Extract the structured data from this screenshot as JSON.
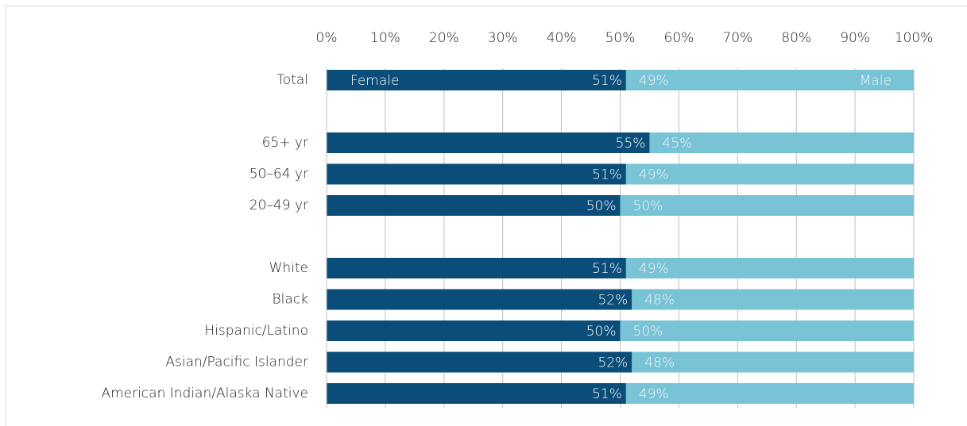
{
  "chart_data": {
    "type": "stacked-bar-horizontal",
    "categories": [
      "Total",
      null,
      "65+ yr",
      "50–64 yr",
      "20–49 yr",
      null,
      "White",
      "Black",
      "Hispanic/Latino",
      "Asian/Pacific Islander",
      "American Indian/Alaska Native"
    ],
    "series": [
      {
        "name": "Female",
        "color": "#0b4d79",
        "values": [
          51,
          null,
          55,
          51,
          50,
          null,
          51,
          52,
          50,
          52,
          51
        ],
        "value_labels": [
          "51%",
          null,
          "55%",
          "51%",
          "50%",
          null,
          "51%",
          "52%",
          "50%",
          "52%",
          "51%"
        ]
      },
      {
        "name": "Male",
        "color": "#78c3d5",
        "values": [
          49,
          null,
          45,
          49,
          50,
          null,
          49,
          48,
          50,
          48,
          49
        ],
        "value_labels": [
          "49%",
          null,
          "45%",
          "49%",
          "50%",
          null,
          "49%",
          "48%",
          "50%",
          "48%",
          "49%"
        ]
      }
    ],
    "xlim": [
      0,
      100
    ],
    "xticks": [
      {
        "value": 0,
        "label": "0%"
      },
      {
        "value": 10,
        "label": "10%"
      },
      {
        "value": 20,
        "label": "20%"
      },
      {
        "value": 30,
        "label": "30%"
      },
      {
        "value": 40,
        "label": "40%"
      },
      {
        "value": 50,
        "label": "50%"
      },
      {
        "value": 60,
        "label": "60%"
      },
      {
        "value": 70,
        "label": "70%"
      },
      {
        "value": 80,
        "label": "80%"
      },
      {
        "value": 90,
        "label": "90%"
      },
      {
        "value": 100,
        "label": "100%"
      }
    ],
    "grid": true
  }
}
